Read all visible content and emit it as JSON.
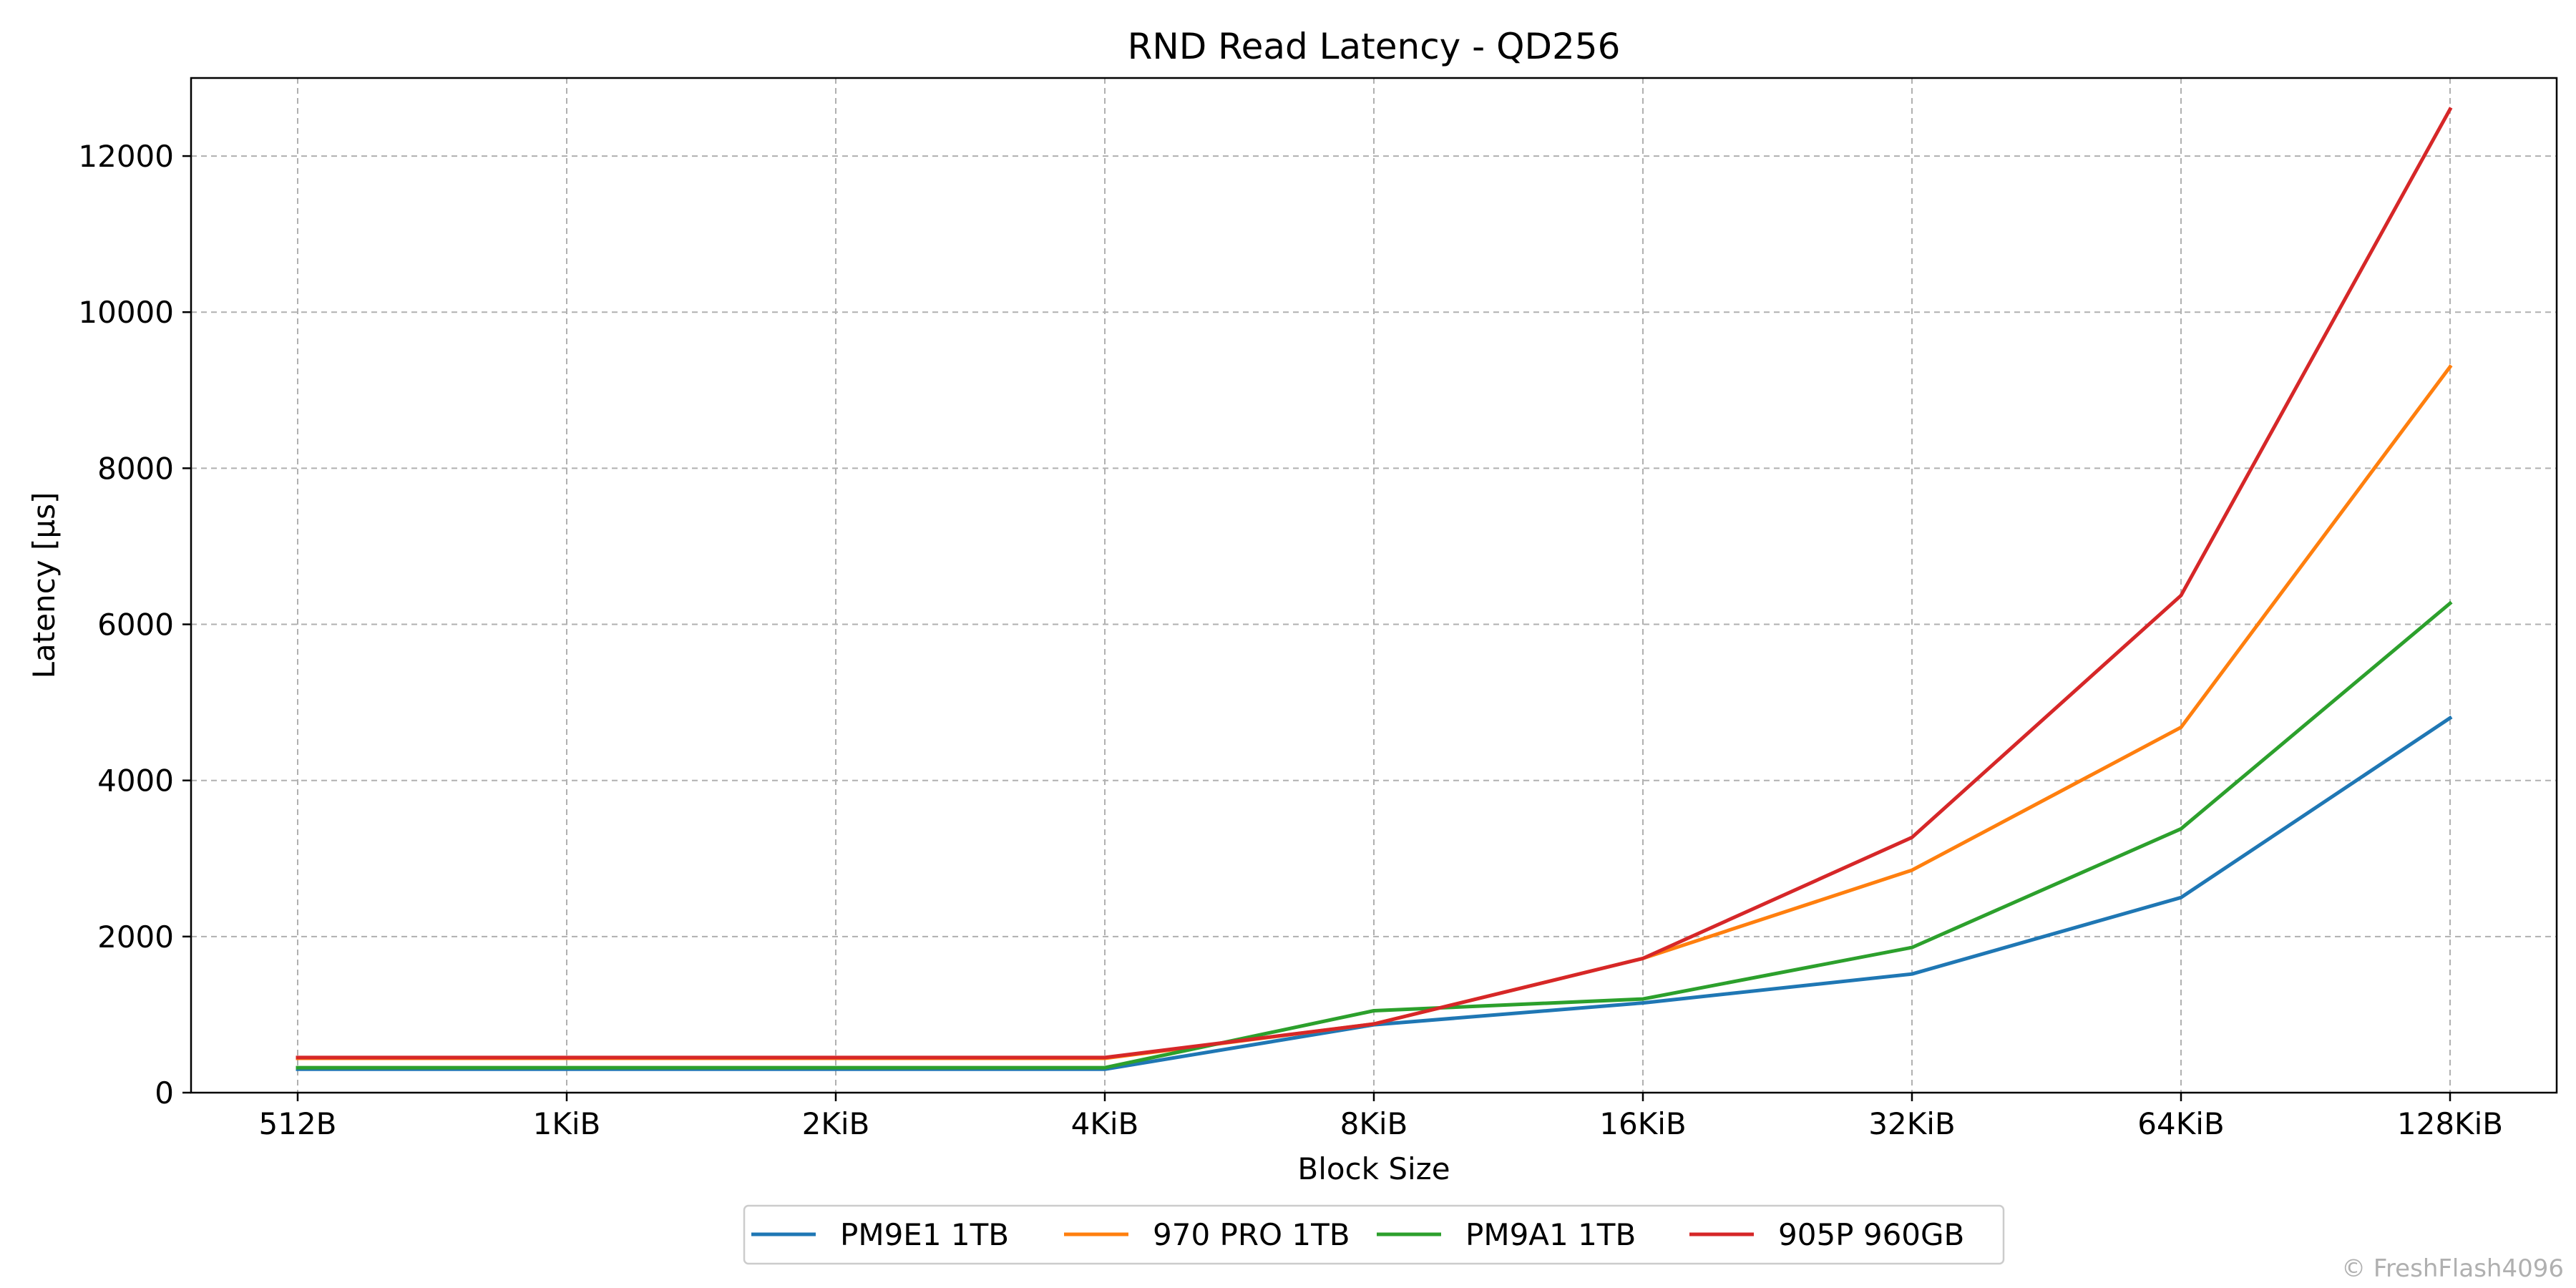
{
  "chart_data": {
    "type": "line",
    "title": "RND Read Latency - QD256",
    "xlabel": "Block Size",
    "ylabel": "Latency [µs]",
    "categories": [
      "512B",
      "1KiB",
      "2KiB",
      "4KiB",
      "8KiB",
      "16KiB",
      "32KiB",
      "64KiB",
      "128KiB"
    ],
    "ylim": [
      0,
      13000
    ],
    "yticks": [
      0,
      2000,
      4000,
      6000,
      8000,
      10000,
      12000
    ],
    "grid": true,
    "legend_position": "bottom-center",
    "series": [
      {
        "name": "PM9E1 1TB",
        "color": "#1f77b4",
        "values": [
          300,
          300,
          300,
          300,
          870,
          1150,
          1520,
          2500,
          4800
        ]
      },
      {
        "name": "970 PRO 1TB",
        "color": "#ff7f0e",
        "values": [
          440,
          440,
          440,
          440,
          880,
          1720,
          2850,
          4680,
          9300
        ]
      },
      {
        "name": "PM9A1 1TB",
        "color": "#2ca02c",
        "values": [
          320,
          320,
          320,
          320,
          1050,
          1200,
          1860,
          3380,
          6270
        ]
      },
      {
        "name": "905P 960GB",
        "color": "#d62728",
        "values": [
          450,
          450,
          450,
          450,
          880,
          1720,
          3270,
          6370,
          12600
        ]
      }
    ]
  },
  "watermark": "© FreshFlash4096"
}
